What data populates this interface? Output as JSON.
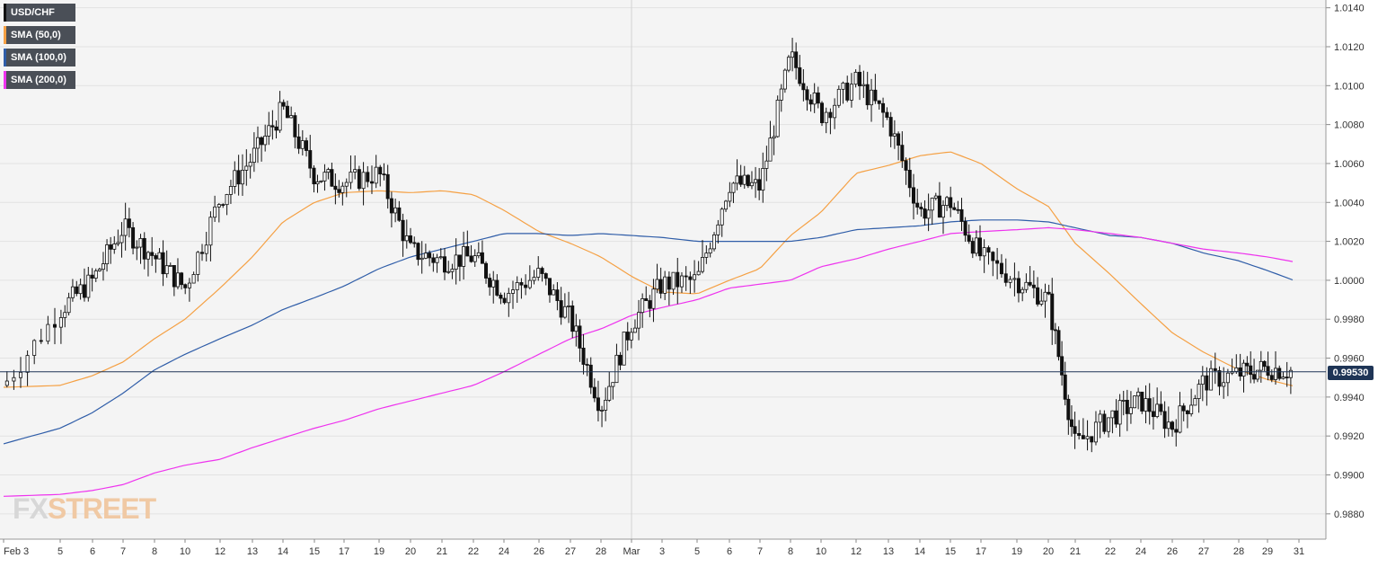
{
  "chart_data": {
    "type": "candlestick",
    "title": "",
    "symbol": "USD/CHF",
    "last_price": "0.99530",
    "y_axis": {
      "position": "right",
      "range": [
        0.9867,
        1.0144
      ],
      "ticks": [
        "1.0140",
        "1.0120",
        "1.0100",
        "1.0080",
        "1.0060",
        "1.0040",
        "1.0020",
        "1.0000",
        "0.9980",
        "0.9960",
        "0.9940",
        "0.9920",
        "0.9900",
        "0.9880"
      ]
    },
    "x_axis": {
      "tick_labels": [
        "Feb 3",
        "5",
        "6",
        "7",
        "8",
        "10",
        "12",
        "13",
        "14",
        "15",
        "17",
        "19",
        "20",
        "21",
        "22",
        "24",
        "26",
        "27",
        "28",
        "Mar",
        "3",
        "5",
        "6",
        "7",
        "8",
        "10",
        "12",
        "13",
        "14",
        "15",
        "17",
        "19",
        "20",
        "21",
        "22",
        "24",
        "26",
        "27",
        "28",
        "29",
        "31"
      ]
    },
    "grid": true,
    "legend": {
      "placement": "top-left",
      "entries": [
        {
          "label": "USD/CHF",
          "color": "#1a1a1a"
        },
        {
          "label": "SMA (50,0)",
          "color": "#f5a043"
        },
        {
          "label": "SMA (100,0)",
          "color": "#2f5da8"
        },
        {
          "label": "SMA (200,0)",
          "color": "#ee33ee"
        }
      ]
    },
    "watermark": {
      "part1": "FX",
      "part2": "STREET"
    },
    "series": [
      {
        "name": "USD/CHF",
        "candle_period": "4h",
        "close_points": [
          [
            "Feb 3",
            0.9946
          ],
          [
            "5",
            0.9985
          ],
          [
            "6",
            1.0
          ],
          [
            "7",
            1.0027
          ],
          [
            "8",
            1.0012
          ],
          [
            "10",
            0.9996
          ],
          [
            "12",
            1.0042
          ],
          [
            "13",
            1.0063
          ],
          [
            "14",
            1.0088
          ],
          [
            "15",
            1.0054
          ],
          [
            "17",
            1.005
          ],
          [
            "19",
            1.0055
          ],
          [
            "20",
            1.0015
          ],
          [
            "21",
            1.001
          ],
          [
            "22",
            1.0012
          ],
          [
            "24",
            0.9993
          ],
          [
            "26",
            1.0003
          ],
          [
            "27",
            0.998
          ],
          [
            "28",
            0.9935
          ],
          [
            "Mar",
            0.9978
          ],
          [
            "3",
            0.9998
          ],
          [
            "5",
            1.0
          ],
          [
            "6",
            1.005
          ],
          [
            "7",
            1.0048
          ],
          [
            "8",
            1.0115
          ],
          [
            "10",
            1.0085
          ],
          [
            "12",
            1.0102
          ],
          [
            "13",
            1.0082
          ],
          [
            "14",
            1.0035
          ],
          [
            "15",
            1.004
          ],
          [
            "17",
            1.0012
          ],
          [
            "19",
            1.0
          ],
          [
            "20",
            0.999
          ],
          [
            "21",
            0.9915
          ],
          [
            "22",
            0.993
          ],
          [
            "24",
            0.9938
          ],
          [
            "26",
            0.9925
          ],
          [
            "27",
            0.9948
          ],
          [
            "28",
            0.9952
          ],
          [
            "29",
            0.9955
          ],
          [
            "31",
            0.9953
          ]
        ]
      },
      {
        "name": "SMA (50,0)",
        "color": "#f5a043",
        "points": [
          [
            "Feb 3",
            0.9945
          ],
          [
            "5",
            0.9946
          ],
          [
            "6",
            0.9951
          ],
          [
            "7",
            0.9958
          ],
          [
            "8",
            0.997
          ],
          [
            "10",
            0.998
          ],
          [
            "12",
            0.9996
          ],
          [
            "13",
            1.0012
          ],
          [
            "14",
            1.003
          ],
          [
            "15",
            1.004
          ],
          [
            "17",
            1.0045
          ],
          [
            "19",
            1.0046
          ],
          [
            "20",
            1.0045
          ],
          [
            "21",
            1.0046
          ],
          [
            "22",
            1.0044
          ],
          [
            "24",
            1.0036
          ],
          [
            "26",
            1.0025
          ],
          [
            "27",
            1.0019
          ],
          [
            "28",
            1.0012
          ],
          [
            "Mar",
            1.0002
          ],
          [
            "3",
            0.9994
          ],
          [
            "5",
            0.9993
          ],
          [
            "6",
            1.0
          ],
          [
            "7",
            1.0006
          ],
          [
            "8",
            1.0023
          ],
          [
            "10",
            1.0035
          ],
          [
            "12",
            1.0055
          ],
          [
            "13",
            1.0059
          ],
          [
            "14",
            1.0064
          ],
          [
            "15",
            1.0066
          ],
          [
            "17",
            1.006
          ],
          [
            "19",
            1.0047
          ],
          [
            "20",
            1.0038
          ],
          [
            "21",
            1.0019
          ],
          [
            "22",
            1.0003
          ],
          [
            "24",
            0.9988
          ],
          [
            "26",
            0.9973
          ],
          [
            "27",
            0.9963
          ],
          [
            "28",
            0.9954
          ],
          [
            "29",
            0.9949
          ],
          [
            "31",
            0.9945
          ]
        ]
      },
      {
        "name": "SMA (100,0)",
        "color": "#2f5da8",
        "points": [
          [
            "Feb 3",
            0.9916
          ],
          [
            "5",
            0.9924
          ],
          [
            "6",
            0.9932
          ],
          [
            "7",
            0.9942
          ],
          [
            "8",
            0.9954
          ],
          [
            "10",
            0.9962
          ],
          [
            "12",
            0.997
          ],
          [
            "13",
            0.9977
          ],
          [
            "14",
            0.9985
          ],
          [
            "15",
            0.9991
          ],
          [
            "17",
            0.9997
          ],
          [
            "19",
            1.0006
          ],
          [
            "20",
            1.0012
          ],
          [
            "21",
            1.0016
          ],
          [
            "22",
            1.002
          ],
          [
            "24",
            1.0024
          ],
          [
            "26",
            1.0024
          ],
          [
            "27",
            1.0023
          ],
          [
            "28",
            1.0024
          ],
          [
            "Mar",
            1.0023
          ],
          [
            "3",
            1.0022
          ],
          [
            "5",
            1.002
          ],
          [
            "6",
            1.002
          ],
          [
            "7",
            1.002
          ],
          [
            "8",
            1.002
          ],
          [
            "10",
            1.0022
          ],
          [
            "12",
            1.0026
          ],
          [
            "13",
            1.0027
          ],
          [
            "14",
            1.0028
          ],
          [
            "15",
            1.003
          ],
          [
            "17",
            1.0031
          ],
          [
            "19",
            1.0031
          ],
          [
            "20",
            1.003
          ],
          [
            "21",
            1.0027
          ],
          [
            "22",
            1.0023
          ],
          [
            "24",
            1.0022
          ],
          [
            "26",
            1.0019
          ],
          [
            "27",
            1.0014
          ],
          [
            "28",
            1.001
          ],
          [
            "29",
            1.0005
          ],
          [
            "31",
            0.9999
          ]
        ]
      },
      {
        "name": "SMA (200,0)",
        "color": "#ee33ee",
        "points": [
          [
            "Feb 3",
            0.9889
          ],
          [
            "5",
            0.989
          ],
          [
            "6",
            0.9892
          ],
          [
            "7",
            0.9895
          ],
          [
            "8",
            0.9901
          ],
          [
            "10",
            0.9905
          ],
          [
            "12",
            0.9908
          ],
          [
            "13",
            0.9914
          ],
          [
            "14",
            0.9919
          ],
          [
            "15",
            0.9924
          ],
          [
            "17",
            0.9928
          ],
          [
            "19",
            0.9934
          ],
          [
            "20",
            0.9938
          ],
          [
            "21",
            0.9942
          ],
          [
            "22",
            0.9946
          ],
          [
            "24",
            0.9953
          ],
          [
            "26",
            0.9962
          ],
          [
            "27",
            0.997
          ],
          [
            "28",
            0.9975
          ],
          [
            "Mar",
            0.9982
          ],
          [
            "3",
            0.9986
          ],
          [
            "5",
            0.999
          ],
          [
            "6",
            0.9996
          ],
          [
            "7",
            0.9998
          ],
          [
            "8",
            1.0
          ],
          [
            "10",
            1.0007
          ],
          [
            "12",
            1.0011
          ],
          [
            "13",
            1.0016
          ],
          [
            "14",
            1.002
          ],
          [
            "15",
            1.0024
          ],
          [
            "17",
            1.0025
          ],
          [
            "19",
            1.0026
          ],
          [
            "20",
            1.0027
          ],
          [
            "21",
            1.0026
          ],
          [
            "22",
            1.0024
          ],
          [
            "24",
            1.0022
          ],
          [
            "26",
            1.0019
          ],
          [
            "27",
            1.0016
          ],
          [
            "28",
            1.0014
          ],
          [
            "29",
            1.0012
          ],
          [
            "31",
            1.0009
          ]
        ]
      }
    ]
  }
}
